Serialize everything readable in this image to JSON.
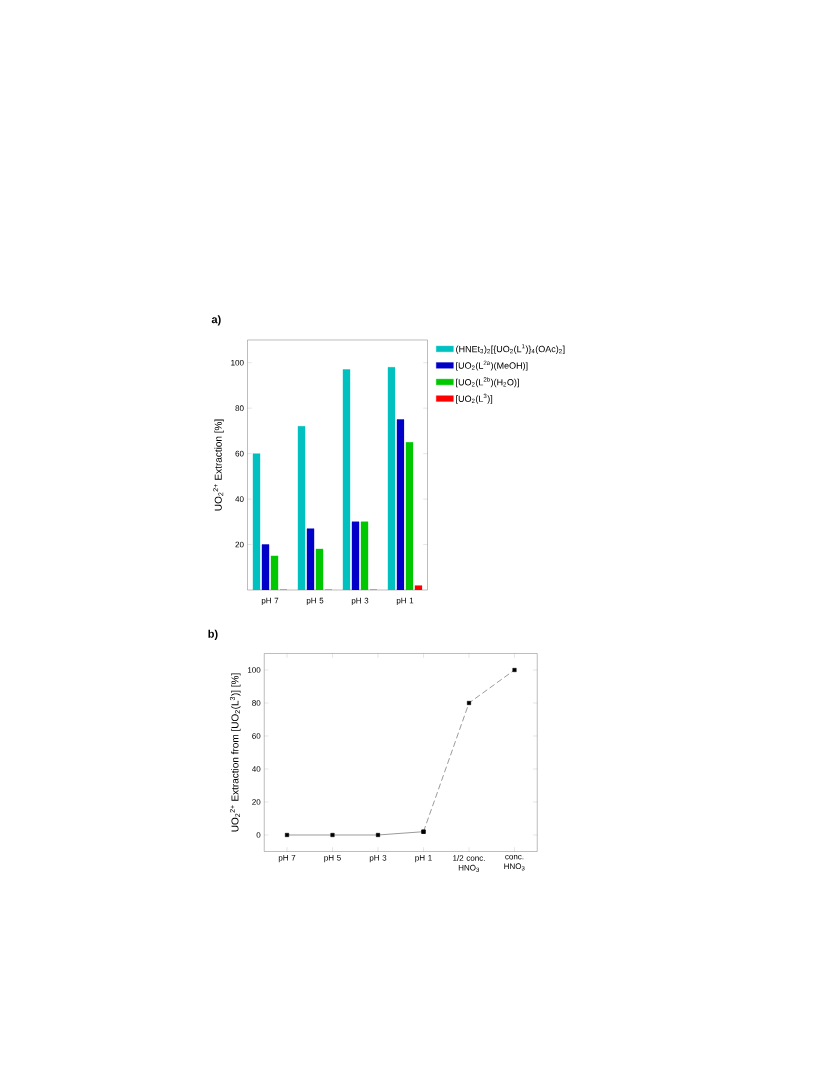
{
  "chart_data": [
    {
      "type": "bar",
      "title": "a)",
      "ylabel": "UO$_{2}$$^{2+}$ Extraction [%]",
      "categories": [
        "pH 7",
        "pH 5",
        "pH 3",
        "pH 1"
      ],
      "ylim": [
        0,
        110
      ],
      "yticks": [
        20,
        40,
        60,
        80,
        100
      ],
      "legend": "top right",
      "series": [
        {
          "name": "(HNEt$_{3}$)$_{2}$[{UO$_{2}$(L$^{1}$)}$_{4}$(OAc)$_{2}$]",
          "color": "#00c0c0",
          "values": [
            60,
            72,
            97,
            98
          ]
        },
        {
          "name": "[UO$_{2}$(L$^{2a}$)(MeOH)]",
          "color": "#0000c8",
          "values": [
            20,
            27,
            30,
            75
          ]
        },
        {
          "name": "[UO$_{2}$(L$^{2b}$)(H$_{2}$O)]",
          "color": "#00c800",
          "values": [
            15,
            18,
            30,
            65
          ]
        },
        {
          "name": "[UO$_{2}$(L$^{3}$)]",
          "color": "#ff0000",
          "values": [
            0,
            0,
            0,
            2
          ]
        }
      ]
    },
    {
      "type": "line",
      "title": "b)",
      "ylabel": "UO$_{2}$$^{2+}$ Extraction from [UO$_{2}$(L$^{3}$)] [%]",
      "categories": [
        "pH 7",
        "pH 5",
        "pH 3",
        "pH 1",
        "1/2 conc. HNO$_{3}$",
        "conc. HNO$_{3}$"
      ],
      "ylim": [
        -10,
        110
      ],
      "yticks": [
        0,
        20,
        40,
        60,
        80,
        100
      ],
      "marker": "square",
      "series": [
        {
          "color": "#000000",
          "line_style": "solid",
          "values": [
            0,
            0,
            0,
            2,
            null,
            null
          ]
        },
        {
          "color": "#000000",
          "line_style": "dashed",
          "values": [
            null,
            null,
            null,
            2,
            80,
            100
          ]
        }
      ]
    }
  ]
}
